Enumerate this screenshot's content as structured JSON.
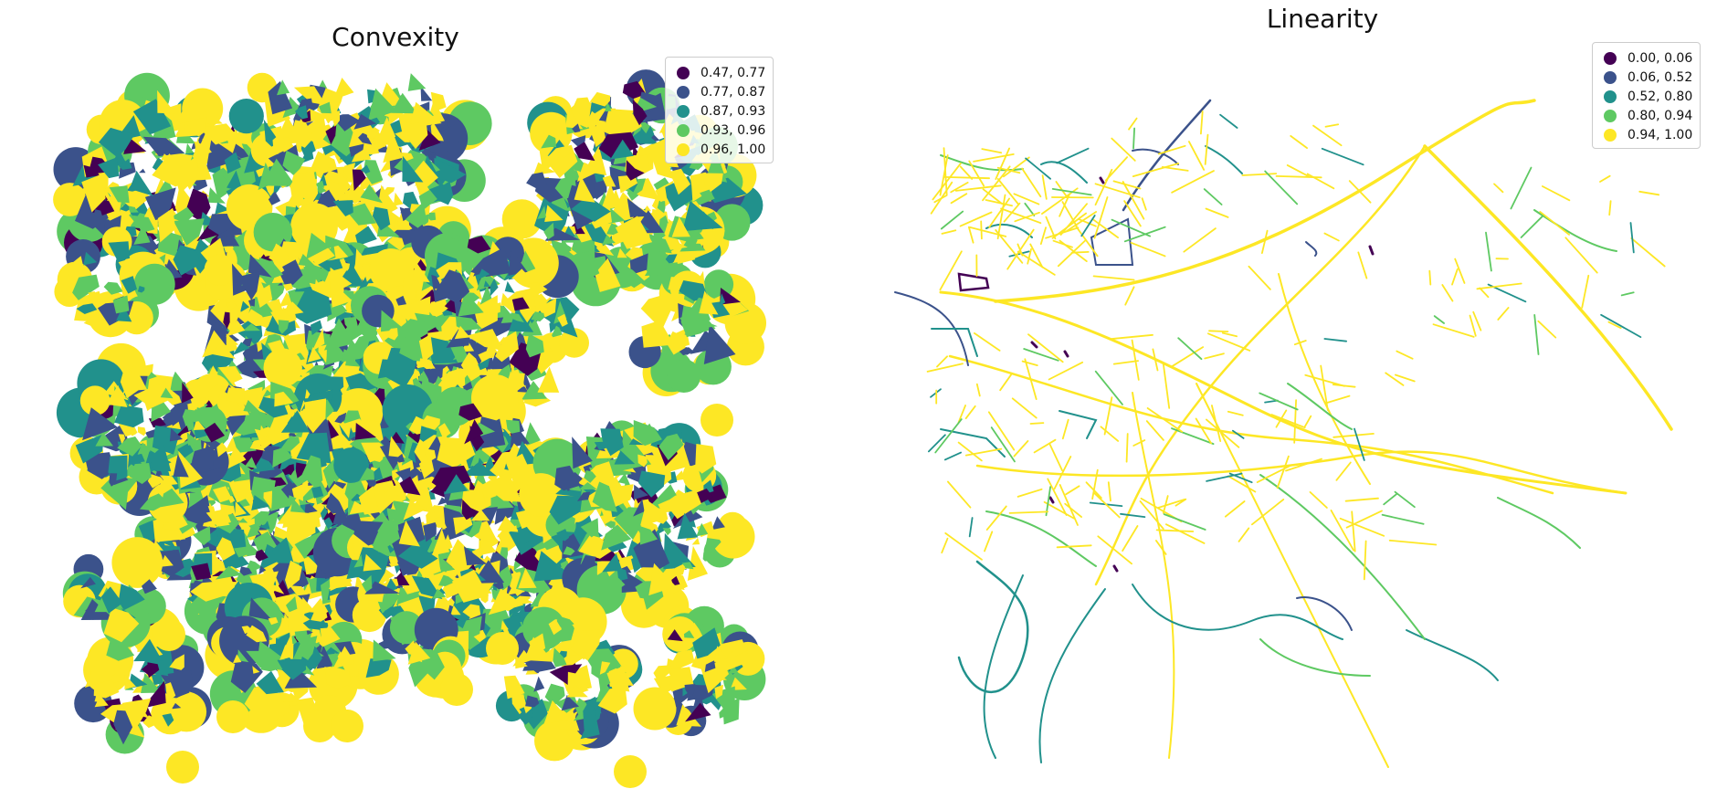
{
  "left_panel": {
    "title": "Convexity",
    "legend": [
      {
        "label": "0.47, 0.77",
        "color": "#440154"
      },
      {
        "label": "0.77, 0.87",
        "color": "#3b528b"
      },
      {
        "label": "0.87, 0.93",
        "color": "#21918c"
      },
      {
        "label": "0.93, 0.96",
        "color": "#5ec962"
      },
      {
        "label": "0.96, 1.00",
        "color": "#fde725"
      }
    ]
  },
  "right_panel": {
    "title": "Linearity",
    "legend": [
      {
        "label": "0.00, 0.06",
        "color": "#440154"
      },
      {
        "label": "0.06, 0.52",
        "color": "#3b528b"
      },
      {
        "label": "0.52, 0.80",
        "color": "#21918c"
      },
      {
        "label": "0.80, 0.94",
        "color": "#5ec962"
      },
      {
        "label": "0.94, 1.00",
        "color": "#fde725"
      }
    ]
  }
}
